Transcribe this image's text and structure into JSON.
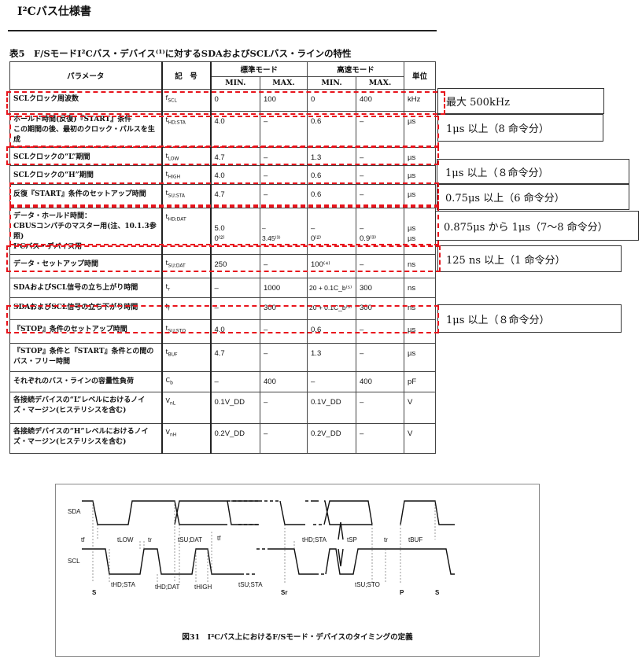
{
  "header": {
    "title": "I²Cバス仕様書"
  },
  "table": {
    "caption": "表5　F/SモードI²Cバス・デバイス⁽¹⁾に対するSDAおよびSCLバス・ラインの特性",
    "headers": {
      "param": "パラメータ",
      "symbol": "記　号",
      "standard": "標準モード",
      "fast": "高速モード",
      "min": "MIN.",
      "max": "MAX.",
      "unit": "単位"
    },
    "rows": [
      {
        "param": "SCLクロック周波数",
        "sym": "f",
        "sub": "SCL",
        "smin": "0",
        "smax": "100",
        "fmin": "0",
        "fmax": "400",
        "unit": "kHz"
      },
      {
        "param": "ホールド時間(反復)『START』条件\nこの期間の後、最初のクロック・パルスを生成",
        "sym": "t",
        "sub": "HD;STA",
        "smin": "4.0",
        "smax": "–",
        "fmin": "0.6",
        "fmax": "–",
        "unit": "µs"
      },
      {
        "param": "SCLクロックの“L”期間",
        "sym": "t",
        "sub": "LOW",
        "smin": "4.7",
        "smax": "–",
        "fmin": "1.3",
        "fmax": "–",
        "unit": "µs"
      },
      {
        "param": "SCLクロックの“H”期間",
        "sym": "t",
        "sub": "HIGH",
        "smin": "4.0",
        "smax": "–",
        "fmin": "0.6",
        "fmax": "–",
        "unit": "µs"
      },
      {
        "param": "反復『START』条件のセットアップ時間",
        "sym": "t",
        "sub": "SU;STA",
        "smin": "4.7",
        "smax": "–",
        "fmin": "0.6",
        "fmax": "–",
        "unit": "µs"
      },
      {
        "param": "データ・ホールド時間：\nCBUSコンパチのマスター用(注、10.1.3参照)\nI²Cバス・デバイス用",
        "sym": "t",
        "sub": "HD;DAT",
        "smin": "\n5.0\n0⁽²⁾",
        "smax": "\n–\n3.45⁽³⁾",
        "fmin": "\n–\n0⁽²⁾",
        "fmax": "\n–\n0.9⁽³⁾",
        "unit": "\nµs\nµs"
      },
      {
        "param": "データ・セットアップ時間",
        "sym": "t",
        "sub": "SU;DAT",
        "smin": "250",
        "smax": "–",
        "fmin": "100⁽⁴⁾",
        "fmax": "–",
        "unit": "ns"
      },
      {
        "param": "SDAおよびSCL信号の立ち上がり時間",
        "sym": "t",
        "sub": "r",
        "smin": "–",
        "smax": "1000",
        "fmin": "20 + 0.1C_b⁽⁵⁾",
        "fmax": "300",
        "unit": "ns"
      },
      {
        "param": "SDAおよびSCL信号の立ち下がり時間",
        "sym": "t",
        "sub": "f",
        "smin": "–",
        "smax": "300",
        "fmin": "20 + 0.1C_b⁽⁵⁾",
        "fmax": "300",
        "unit": "ns"
      },
      {
        "param": "『STOP』条件のセットアップ時間",
        "sym": "t",
        "sub": "SU;STO",
        "smin": "4.0",
        "smax": "–",
        "fmin": "0.6",
        "fmax": "–",
        "unit": "µs"
      },
      {
        "param": "『STOP』条件と『START』条件との間のバス・フリー時間",
        "sym": "t",
        "sub": "BUF",
        "smin": "4.7",
        "smax": "–",
        "fmin": "1.3",
        "fmax": "–",
        "unit": "µs"
      },
      {
        "param": "それぞれのバス・ラインの容量性負荷",
        "sym": "C",
        "sub": "b",
        "smin": "–",
        "smax": "400",
        "fmin": "–",
        "fmax": "400",
        "unit": "pF"
      },
      {
        "param": "各接続デバイスの“L”レベルにおけるノイズ・マージン(ヒステリシスを含む)",
        "sym": "V",
        "sub": "nL",
        "smin": "0.1V_DD",
        "smax": "–",
        "fmin": "0.1V_DD",
        "fmax": "–",
        "unit": "V"
      },
      {
        "param": "各接続デバイスの“H”レベルにおけるノイズ・マージン(ヒステリシスを含む)",
        "sym": "V",
        "sub": "nH",
        "smin": "0.2V_DD",
        "smax": "–",
        "fmin": "0.2V_DD",
        "fmax": "–",
        "unit": "V"
      }
    ]
  },
  "annotations": [
    "最大 500kHz",
    "1μs 以上（8 命令分）",
    "1μs 以上（８命令分）",
    "0.75μs 以上（6 命令分）",
    "0.875μs から 1μs（7〜8 命令分）",
    "125 ns 以上（1 命令分）",
    "1μs 以上（８命令分）"
  ],
  "annotation_color": "#e8141c",
  "figure": {
    "caption": "図31　I²Cバス上におけるF/Sモード・デバイスのタイミングの定義",
    "signals": {
      "sda": "SDA",
      "scl": "SCL"
    },
    "labels": {
      "tf1": "tf",
      "tlow": "tLOW",
      "tr1": "tr",
      "tsudat": "tSU;DAT",
      "tf2": "tf",
      "thdsta2": "tHD;STA",
      "tsp": "tSP",
      "tr2": "tr",
      "tbuf": "tBUF",
      "thdsta": "tHD;STA",
      "thddat": "tHD;DAT",
      "thigh": "tHIGH",
      "tsusta": "tSU;STA",
      "tsusto": "tSU;STO",
      "s1": "S",
      "sr": "Sr",
      "p": "P",
      "s2": "S"
    }
  }
}
